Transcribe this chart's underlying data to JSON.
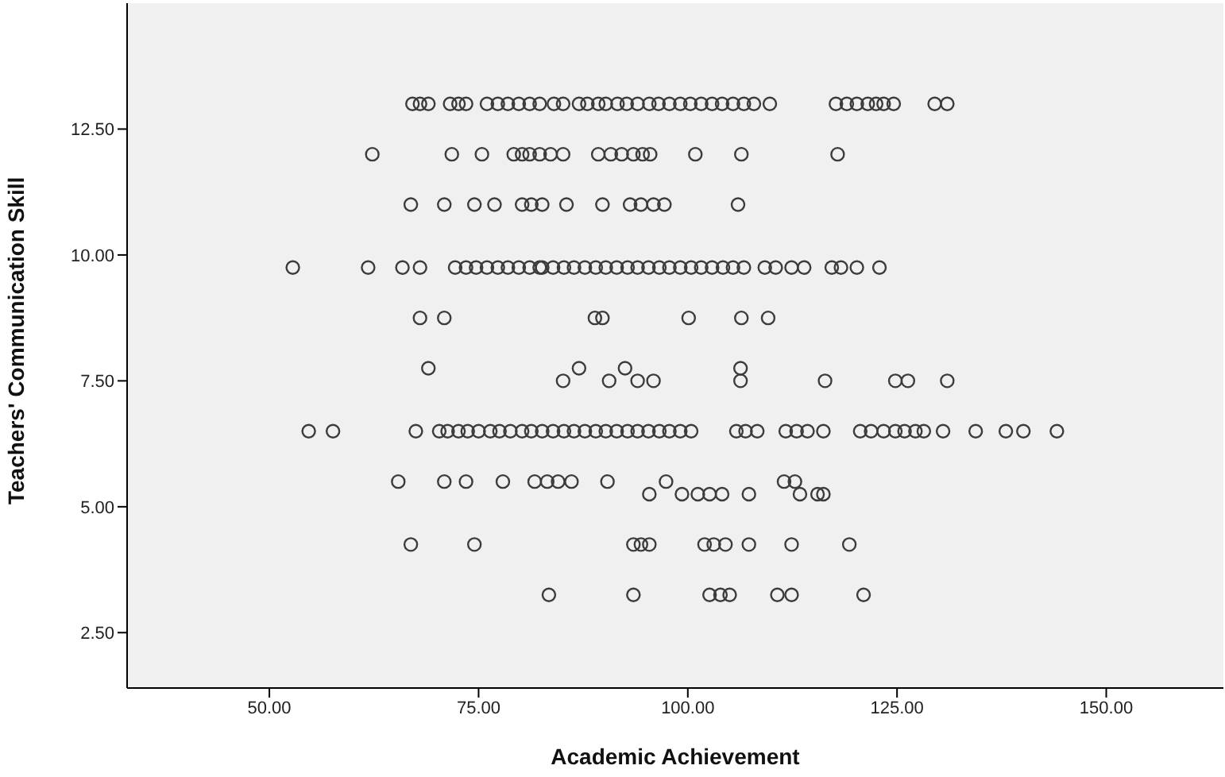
{
  "chart_data": {
    "type": "scatter",
    "xlabel": "Academic Achievement",
    "ylabel": "Teachers' Communication Skill",
    "xlim": [
      33,
      164
    ],
    "ylim": [
      1.4,
      15
    ],
    "xticks": [
      {
        "value": 50,
        "label": "50.00"
      },
      {
        "value": 75,
        "label": "75.00"
      },
      {
        "value": 100,
        "label": "100.00"
      },
      {
        "value": 125,
        "label": "125.00"
      },
      {
        "value": 150,
        "label": "150.00"
      }
    ],
    "yticks": [
      {
        "value": 2.5,
        "label": "2.50"
      },
      {
        "value": 5,
        "label": "5.00"
      },
      {
        "value": 7.5,
        "label": "7.50"
      },
      {
        "value": 10,
        "label": "10.00"
      },
      {
        "value": 12.5,
        "label": "12.50"
      }
    ],
    "marker": "circle",
    "grid": false,
    "legend": false,
    "series": [
      {
        "color": "#3c3c3c",
        "x": [
          67.1,
          68.0,
          69.0,
          71.6,
          72.6,
          73.5,
          76.0,
          77.3,
          78.5,
          79.8,
          81.1,
          82.3,
          84.0,
          85.1,
          87.0,
          88.0,
          89.3,
          90.2,
          91.6,
          92.7,
          94.0,
          95.4,
          96.5,
          97.8,
          99.1,
          100.3,
          101.6,
          102.9,
          104.1,
          105.4,
          106.7,
          107.9,
          109.8,
          117.7,
          119.0,
          120.2,
          121.5,
          122.5,
          123.4,
          124.6,
          129.5,
          131.0,
          62.3,
          71.8,
          75.4,
          79.2,
          80.2,
          81.1,
          82.3,
          83.6,
          85.1,
          89.3,
          90.8,
          92.1,
          93.5,
          94.6,
          95.5,
          100.9,
          106.4,
          117.9,
          66.9,
          70.9,
          74.5,
          76.9,
          80.2,
          81.3,
          82.6,
          85.5,
          89.8,
          93.1,
          94.4,
          95.9,
          97.2,
          106.0,
          52.8,
          61.8,
          65.9,
          68.0,
          72.2,
          73.5,
          74.7,
          76.0,
          77.3,
          78.5,
          79.8,
          81.1,
          82.3,
          82.6,
          83.9,
          85.2,
          86.4,
          87.7,
          89.0,
          90.2,
          91.5,
          92.8,
          94.0,
          95.3,
          96.6,
          97.8,
          99.1,
          100.4,
          101.6,
          102.9,
          104.2,
          105.4,
          106.7,
          109.2,
          110.5,
          112.4,
          113.9,
          117.2,
          118.3,
          120.2,
          122.9,
          68.0,
          70.9,
          88.9,
          89.8,
          100.1,
          106.4,
          109.6,
          69.0,
          87.0,
          92.5,
          106.3,
          85.1,
          90.6,
          94.0,
          95.9,
          106.3,
          116.4,
          124.8,
          126.3,
          131.0,
          54.7,
          57.6,
          67.5,
          70.3,
          71.3,
          72.6,
          73.7,
          75.0,
          76.4,
          77.5,
          78.8,
          80.2,
          81.3,
          82.6,
          83.9,
          85.2,
          86.4,
          87.7,
          89.0,
          90.2,
          91.5,
          92.8,
          94.0,
          95.3,
          96.6,
          97.8,
          99.1,
          100.4,
          105.8,
          106.9,
          108.3,
          111.7,
          113.0,
          114.3,
          116.2,
          120.6,
          121.9,
          123.4,
          124.8,
          125.9,
          127.2,
          128.2,
          130.5,
          134.4,
          138.0,
          140.1,
          144.1,
          65.4,
          70.9,
          73.5,
          77.9,
          81.7,
          83.2,
          84.5,
          86.1,
          90.4,
          97.4,
          111.5,
          112.8,
          95.4,
          99.3,
          101.2,
          102.6,
          104.1,
          107.3,
          113.4,
          115.5,
          116.2,
          66.9,
          74.5,
          93.5,
          94.4,
          95.4,
          102.0,
          103.1,
          104.5,
          107.3,
          112.4,
          119.3,
          83.4,
          93.5,
          102.6,
          103.9,
          105.0,
          110.7,
          112.4,
          121.0
        ],
        "values": [
          13,
          13,
          13,
          13,
          13,
          13,
          13,
          13,
          13,
          13,
          13,
          13,
          13,
          13,
          13,
          13,
          13,
          13,
          13,
          13,
          13,
          13,
          13,
          13,
          13,
          13,
          13,
          13,
          13,
          13,
          13,
          13,
          13,
          13,
          13,
          13,
          13,
          13,
          13,
          13,
          13,
          13,
          12,
          12,
          12,
          12,
          12,
          12,
          12,
          12,
          12,
          12,
          12,
          12,
          12,
          12,
          12,
          12,
          12,
          12,
          11,
          11,
          11,
          11,
          11,
          11,
          11,
          11,
          11,
          11,
          11,
          11,
          11,
          11,
          9.75,
          9.75,
          9.75,
          9.75,
          9.75,
          9.75,
          9.75,
          9.75,
          9.75,
          9.75,
          9.75,
          9.75,
          9.75,
          9.75,
          9.75,
          9.75,
          9.75,
          9.75,
          9.75,
          9.75,
          9.75,
          9.75,
          9.75,
          9.75,
          9.75,
          9.75,
          9.75,
          9.75,
          9.75,
          9.75,
          9.75,
          9.75,
          9.75,
          9.75,
          9.75,
          9.75,
          9.75,
          9.75,
          9.75,
          9.75,
          9.75,
          8.75,
          8.75,
          8.75,
          8.75,
          8.75,
          8.75,
          8.75,
          7.75,
          7.75,
          7.75,
          7.75,
          7.5,
          7.5,
          7.5,
          7.5,
          7.5,
          7.5,
          7.5,
          7.5,
          7.5,
          6.5,
          6.5,
          6.5,
          6.5,
          6.5,
          6.5,
          6.5,
          6.5,
          6.5,
          6.5,
          6.5,
          6.5,
          6.5,
          6.5,
          6.5,
          6.5,
          6.5,
          6.5,
          6.5,
          6.5,
          6.5,
          6.5,
          6.5,
          6.5,
          6.5,
          6.5,
          6.5,
          6.5,
          6.5,
          6.5,
          6.5,
          6.5,
          6.5,
          6.5,
          6.5,
          6.5,
          6.5,
          6.5,
          6.5,
          6.5,
          6.5,
          6.5,
          6.5,
          6.5,
          6.5,
          6.5,
          6.5,
          5.5,
          5.5,
          5.5,
          5.5,
          5.5,
          5.5,
          5.5,
          5.5,
          5.5,
          5.5,
          5.5,
          5.5,
          5.25,
          5.25,
          5.25,
          5.25,
          5.25,
          5.25,
          5.25,
          5.25,
          5.25,
          4.25,
          4.25,
          4.25,
          4.25,
          4.25,
          4.25,
          4.25,
          4.25,
          4.25,
          4.25,
          4.25,
          3.25,
          3.25,
          3.25,
          3.25,
          3.25,
          3.25,
          3.25,
          3.25
        ]
      }
    ]
  }
}
